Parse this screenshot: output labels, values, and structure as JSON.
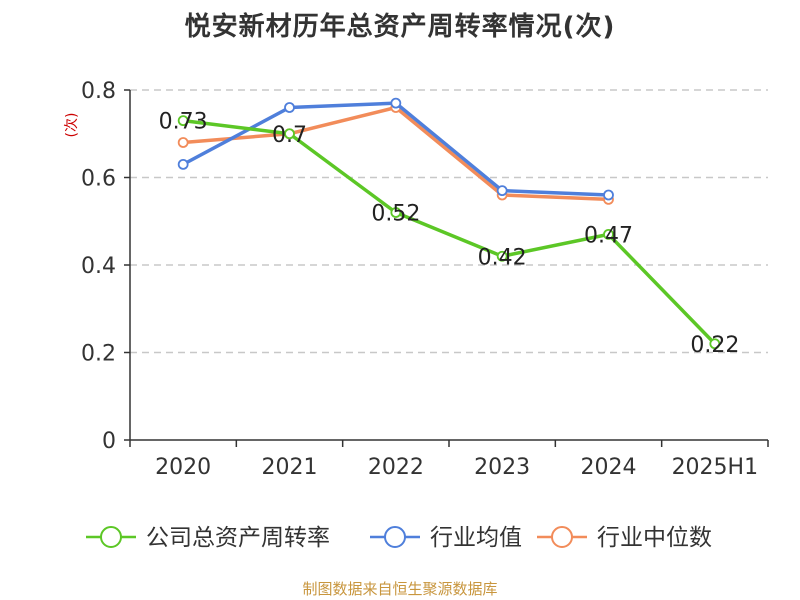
{
  "title": "悦安新材历年总资产周转率情况(次)",
  "source": "制图数据来自恒生聚源数据库",
  "colors": {
    "axis": "#333333",
    "grid": "#c8c8c8",
    "ylabel": "#cc0000"
  },
  "chart_data": {
    "type": "line",
    "title": "悦安新材历年总资产周转率情况(次)",
    "xlabel": "",
    "ylabel": "(次)",
    "categories": [
      "2020",
      "2021",
      "2022",
      "2023",
      "2024",
      "2025H1"
    ],
    "ylim": [
      0,
      0.8
    ],
    "yticks": [
      0,
      0.2,
      0.4,
      0.6,
      0.8
    ],
    "ytick_labels": [
      "0",
      "0.2",
      "0.4",
      "0.6",
      "0.8"
    ],
    "grid": true,
    "legend_position": "bottom",
    "series": [
      {
        "name": "公司总资产周转率",
        "color": "#5cc726",
        "values": [
          0.73,
          0.7,
          0.52,
          0.42,
          0.47,
          0.22
        ],
        "labels": [
          "0.73",
          "0.7",
          "0.52",
          "0.42",
          "0.47",
          "0.22"
        ],
        "show_labels": true
      },
      {
        "name": "行业均值",
        "color": "#4f7fdb",
        "values": [
          0.63,
          0.76,
          0.77,
          0.57,
          0.56,
          null
        ],
        "show_labels": false
      },
      {
        "name": "行业中位数",
        "color": "#f28c5a",
        "values": [
          0.68,
          0.7,
          0.76,
          0.56,
          0.55,
          null
        ],
        "show_labels": false
      }
    ]
  }
}
